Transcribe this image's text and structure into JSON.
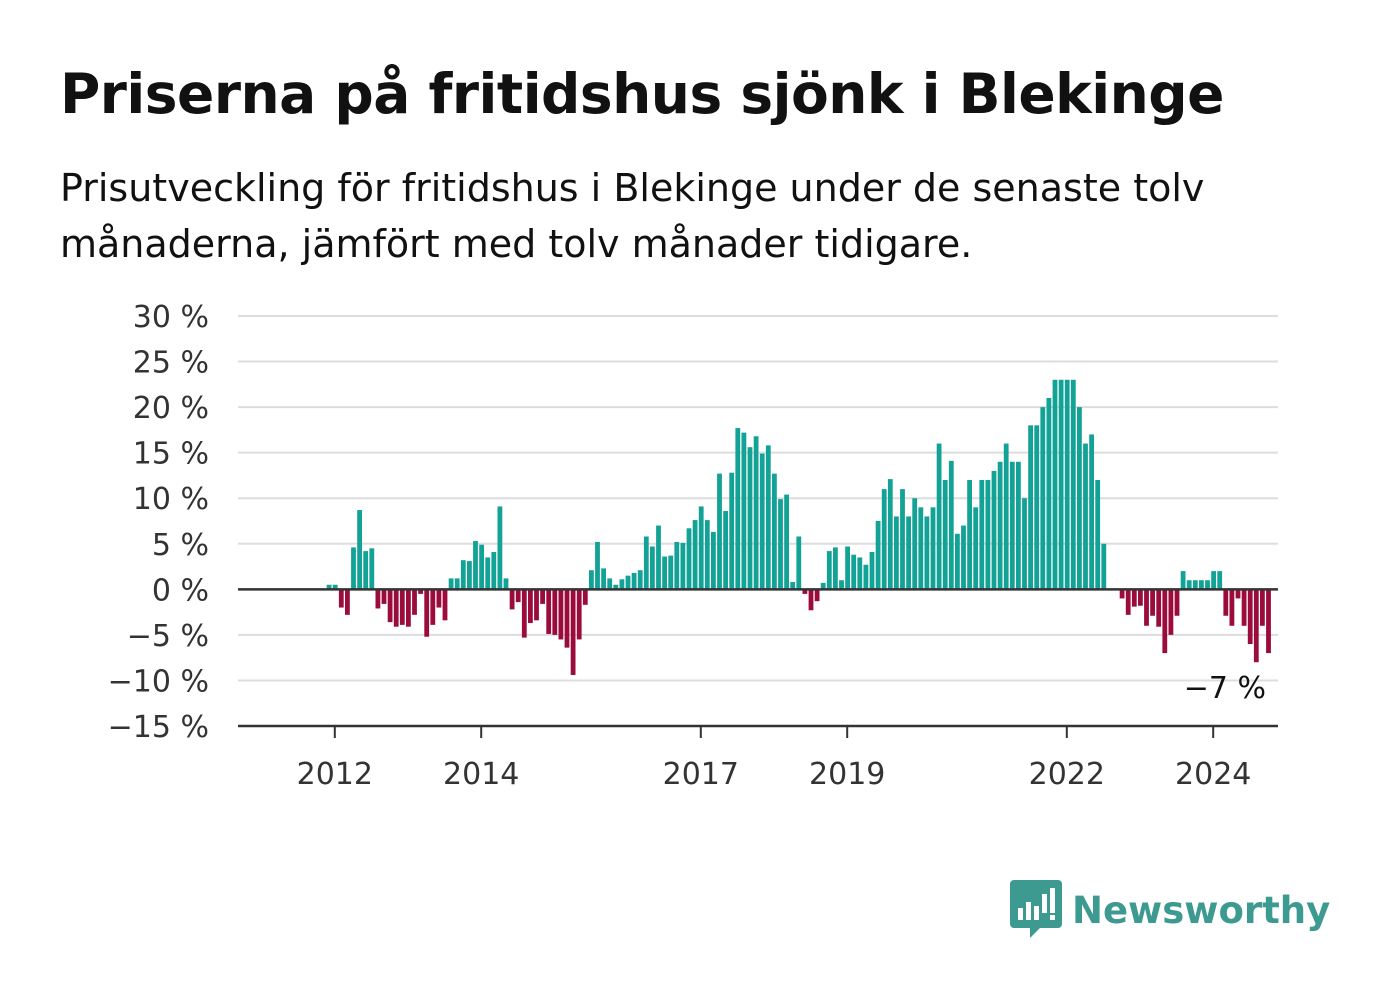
{
  "title": "Priserna på fritidshus sjönk i Blekinge",
  "subtitle": "Prisutveckling för fritidshus i Blekinge under de senaste tolv månaderna, jämfört med tolv månader tidigare.",
  "brand": {
    "name": "Newsworthy",
    "color": "#3d9a90"
  },
  "colors": {
    "positive": "#13a296",
    "negative": "#9b0b3b",
    "grid": "#dddddd",
    "axis": "#333333"
  },
  "chart_data": {
    "type": "bar",
    "title": "Priserna på fritidshus sjönk i Blekinge",
    "subtitle": "Prisutveckling för fritidshus i Blekinge under de senaste tolv månaderna, jämfört med tolv månader tidigare.",
    "xlabel": "",
    "ylabel": "",
    "ylim": [
      -15,
      30
    ],
    "grid": true,
    "y_ticks": [
      "30 %",
      "25 %",
      "20 %",
      "15 %",
      "10 %",
      "5 %",
      "0 %",
      "−5 %",
      "−10 %",
      "−15 %"
    ],
    "x_ticks": [
      "2012",
      "2014",
      "2017",
      "2019",
      "2022",
      "2024"
    ],
    "x_tick_years": [
      2012,
      2014,
      2017,
      2019,
      2022,
      2024
    ],
    "start": "2011-05",
    "end": "2025-03",
    "values": [
      0,
      0,
      0,
      0,
      0,
      0,
      0,
      0.5,
      0.5,
      -2,
      -2.8,
      4.6,
      8.7,
      4.2,
      4.5,
      -2.1,
      -1.6,
      -3.6,
      -4.1,
      -3.9,
      -4.1,
      -2.8,
      -0.5,
      -5.2,
      -3.9,
      -2,
      -3.4,
      1.2,
      1.2,
      3.2,
      3.1,
      5.3,
      4.9,
      3.5,
      4.1,
      9.1,
      1.2,
      -2.2,
      -1.4,
      -5.3,
      -3.7,
      -3.4,
      -1.6,
      -4.9,
      -5,
      -5.5,
      -6.4,
      -9.4,
      -5.5,
      -1.7,
      2.1,
      5.2,
      2.3,
      1.2,
      0.5,
      1.1,
      1.5,
      1.8,
      2.1,
      5.8,
      4.7,
      7,
      3.6,
      3.7,
      5.2,
      5.1,
      6.7,
      7.6,
      9.1,
      7.6,
      6.3,
      12.7,
      8.6,
      12.8,
      17.7,
      17.2,
      15.6,
      16.8,
      14.9,
      15.8,
      12.7,
      9.9,
      10.4,
      0.8,
      5.8,
      -0.5,
      -2.3,
      -1.3,
      0.7,
      4.2,
      4.6,
      1,
      4.7,
      3.8,
      3.5,
      2.7,
      4.1,
      7.5,
      11,
      12.1,
      8,
      11,
      8,
      10,
      9,
      8,
      9,
      16,
      12,
      14.1,
      6.1,
      7,
      12,
      9,
      12,
      12,
      13,
      14,
      16,
      14,
      14,
      10,
      18,
      18,
      20,
      21,
      23,
      23,
      23,
      23,
      20,
      16,
      17,
      12,
      5,
      0,
      0,
      -1,
      -2.8,
      -1.9,
      -1.8,
      -4,
      -2.9,
      -4.1,
      -7,
      -5,
      -2.9,
      2,
      1,
      1,
      1,
      1,
      2,
      2,
      -2.9,
      -4,
      -1,
      -4,
      -6,
      -8,
      -4,
      -7
    ],
    "annotation": {
      "label": "−7 %",
      "value": -7
    }
  }
}
